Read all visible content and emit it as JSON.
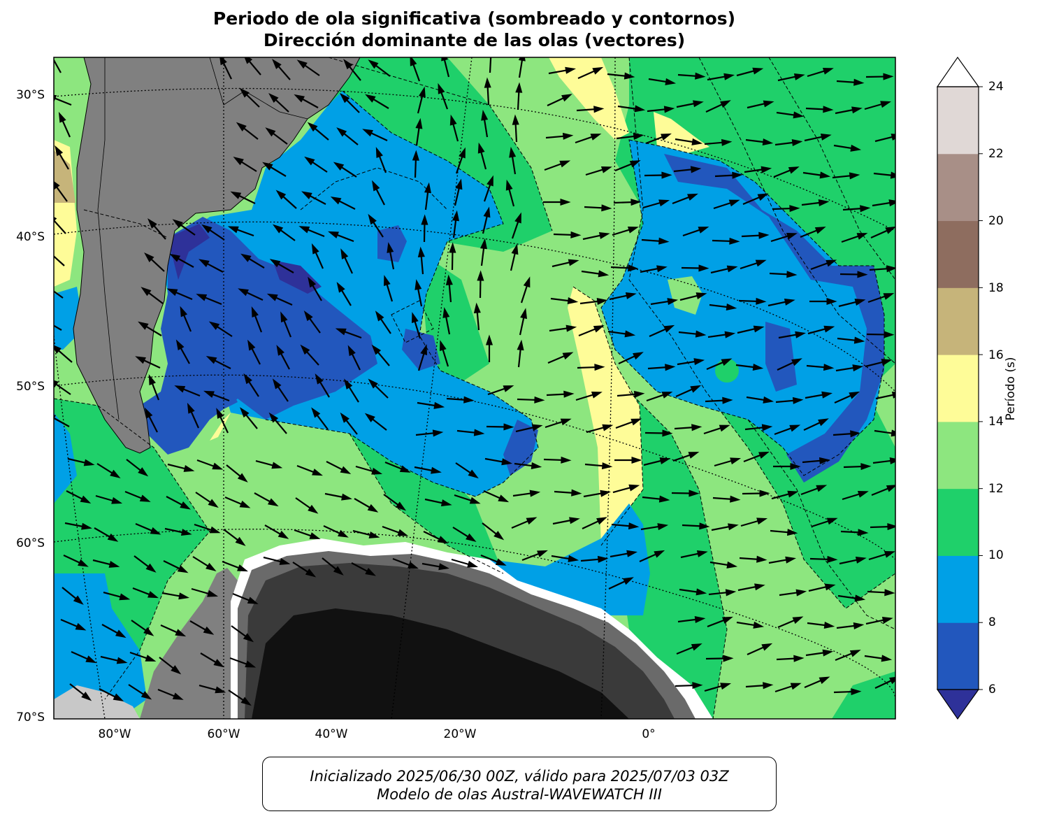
{
  "title": {
    "line1": "Periodo de ola significativa (sombreado y contornos)",
    "line2": "Dirección dominante de las olas (vectores)"
  },
  "axes": {
    "lat_labels": [
      "30°S",
      "40°S",
      "50°S",
      "60°S",
      "70°S"
    ],
    "lon_labels": [
      "80°W",
      "60°W",
      "40°W",
      "20°W",
      "0°"
    ]
  },
  "colorbar": {
    "label": "Período (s)",
    "ticks": [
      "6",
      "8",
      "10",
      "12",
      "14",
      "16",
      "18",
      "20",
      "22",
      "24"
    ],
    "bands": [
      {
        "range": "<6",
        "color": "#2e3199"
      },
      {
        "range": "6-8",
        "color": "#2257bd"
      },
      {
        "range": "8-10",
        "color": "#00a0e6"
      },
      {
        "range": "10-12",
        "color": "#1fd06a"
      },
      {
        "range": "12-14",
        "color": "#8de67f"
      },
      {
        "range": "14-16",
        "color": "#fefc98"
      },
      {
        "range": "16-18",
        "color": "#c6b47a"
      },
      {
        "range": "18-20",
        "color": "#8e6d5f"
      },
      {
        "range": "20-22",
        "color": "#a88f87"
      },
      {
        "range": "22-24",
        "color": "#e0d8d6"
      },
      {
        "range": ">24",
        "color": "#ffffff"
      }
    ]
  },
  "map_colors": {
    "land": "#808080",
    "ice_dark": "#111111",
    "ice_mid": "#3a3a3a"
  },
  "footer": {
    "line1": "Inicializado 2025/06/30 00Z, válido para 2025/07/03 03Z",
    "line2": "Modelo de olas Austral-WAVEWATCH III"
  }
}
